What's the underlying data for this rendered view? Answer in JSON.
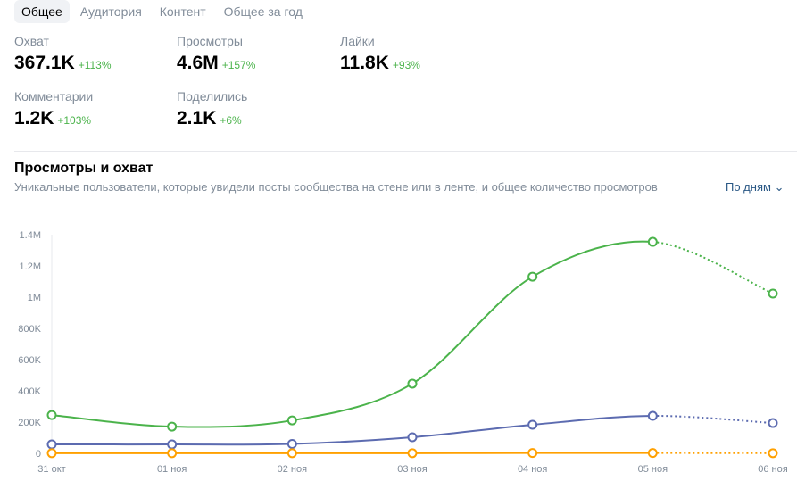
{
  "tabs": [
    "Общее",
    "Аудитория",
    "Контент",
    "Общее за год"
  ],
  "metrics": [
    {
      "label": "Охват",
      "value": "367.1K",
      "delta": "+113%"
    },
    {
      "label": "Просмотры",
      "value": "4.6M",
      "delta": "+157%"
    },
    {
      "label": "Лайки",
      "value": "11.8K",
      "delta": "+93%"
    },
    {
      "label": "Комментарии",
      "value": "1.2K",
      "delta": "+103%"
    },
    {
      "label": "Поделились",
      "value": "2.1K",
      "delta": "+6%"
    }
  ],
  "section": {
    "title": "Просмотры и охват",
    "subtitle": "Уникальные пользователи, которые увидели посты сообщества на стене или в ленте, и общее количество просмотров",
    "period": "По дням"
  },
  "chart_data": {
    "type": "line",
    "title": "Просмотры и охват",
    "categories": [
      "31 окт",
      "01 ноя",
      "02 ноя",
      "03 ноя",
      "04 ноя",
      "05 ноя",
      "06 ноя"
    ],
    "ylim": [
      0,
      1400000
    ],
    "yticks": [
      0,
      200000,
      400000,
      600000,
      800000,
      1000000,
      1200000,
      1400000
    ],
    "ytick_labels": [
      "0",
      "200K",
      "400K",
      "600K",
      "800K",
      "1M",
      "1.2M",
      "1.4M"
    ],
    "series": [
      {
        "name": "Просмотры",
        "color": "#4bb34b",
        "values": [
          245000,
          171000,
          211000,
          446000,
          1131000,
          1354000,
          1023000
        ]
      },
      {
        "name": "Охват",
        "color": "#5c6bb0",
        "values": [
          57000,
          57000,
          60000,
          103000,
          183000,
          240000,
          194000
        ]
      },
      {
        "name": "Лайки",
        "color": "#ffa000",
        "values": [
          1000,
          1000,
          1000,
          1000,
          2000,
          2000,
          1000
        ]
      }
    ],
    "last_segment_dashed": true
  }
}
